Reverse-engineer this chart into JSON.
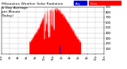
{
  "title": "Milwaukee Weather Solar Radiation & Day Average per Minute (Today)",
  "title_fontsize": 3.2,
  "title_color": "#111111",
  "background_color": "#ffffff",
  "plot_bg_color": "#ffffff",
  "grid_color": "#bbbbbb",
  "legend_solar_color": "#ff0000",
  "legend_avg_color": "#0000cc",
  "legend_solar_label": "Solar",
  "legend_avg_label": "Avg",
  "solar_color": "#ff0000",
  "avg_line_color": "#0000cc",
  "avg_line_x": 810,
  "avg_line_ymax": 0.16,
  "xlim": [
    0,
    1439
  ],
  "ylim": [
    0,
    900
  ],
  "ytick_values": [
    100,
    200,
    300,
    400,
    500,
    600,
    700,
    800,
    900
  ],
  "ytick_fontsize": 2.8,
  "xtick_fontsize": 2.5,
  "xtick_positions": [
    0,
    120,
    240,
    360,
    480,
    600,
    720,
    840,
    960,
    1080,
    1200,
    1320,
    1439
  ],
  "xtick_labels": [
    "12a",
    "2a",
    "4a",
    "6a",
    "8a",
    "10a",
    "12p",
    "2p",
    "4p",
    "6p",
    "8p",
    "10p",
    "12a"
  ],
  "num_points": 1440
}
